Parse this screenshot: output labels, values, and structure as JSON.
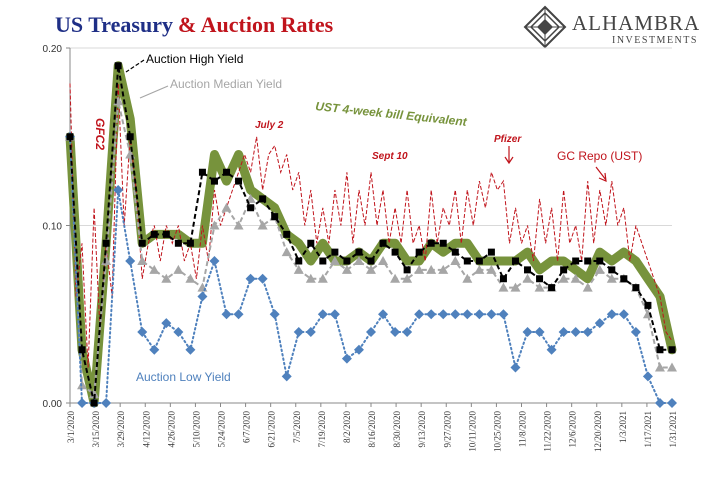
{
  "header": {
    "title_part1": "US Treasury",
    "title_part2": "& Auction Rates",
    "title_part1_color": "#1f2f86",
    "title_part2_color": "#c0141c"
  },
  "logo": {
    "name": "ALHAMBRA",
    "tagline": "INVESTMENTS"
  },
  "chart_data": {
    "type": "line",
    "ylim": [
      0,
      0.2
    ],
    "y_ticks": [
      "0.00",
      "0.10",
      "0.20"
    ],
    "x_tick_labels": [
      "3/1/2020",
      "3/15/2020",
      "3/29/2020",
      "4/12/2020",
      "4/26/2020",
      "5/10/2020",
      "5/24/2020",
      "6/7/2020",
      "6/21/2020",
      "7/5/2020",
      "7/19/2020",
      "8/2/2020",
      "8/16/2020",
      "8/30/2020",
      "9/13/2020",
      "9/27/2020",
      "10/11/2020",
      "10/25/2020",
      "11/8/2020",
      "11/22/2020",
      "12/6/2020",
      "12/20/2020",
      "1/3/2021",
      "1/17/2021",
      "1/31/2021"
    ],
    "series": [
      {
        "name": "UST 4-week bill Equivalent",
        "color": "#77933c",
        "style": "thick",
        "x": [
          0,
          1,
          2,
          3,
          4,
          5,
          6,
          7,
          8,
          9,
          10,
          11,
          12,
          13,
          14,
          15,
          16,
          17,
          18,
          19,
          20,
          21,
          22,
          23,
          24,
          25,
          26,
          27,
          28,
          29,
          30,
          31,
          32,
          33,
          34,
          35,
          36,
          37,
          38,
          39,
          40,
          41,
          42,
          43,
          44,
          45,
          46,
          47,
          48,
          49,
          50
        ],
        "values": [
          0.15,
          0.03,
          0.0,
          0.09,
          0.19,
          0.16,
          0.09,
          0.095,
          0.095,
          0.095,
          0.09,
          0.09,
          0.14,
          0.125,
          0.14,
          0.12,
          0.115,
          0.11,
          0.095,
          0.09,
          0.08,
          0.09,
          0.08,
          0.08,
          0.085,
          0.08,
          0.09,
          0.09,
          0.08,
          0.08,
          0.09,
          0.085,
          0.09,
          0.09,
          0.08,
          0.08,
          0.08,
          0.08,
          0.085,
          0.075,
          0.08,
          0.08,
          0.075,
          0.07,
          0.085,
          0.08,
          0.085,
          0.08,
          0.07,
          0.06,
          0.03
        ]
      },
      {
        "name": "Auction High Yield",
        "color": "#000000",
        "style": "dash-square",
        "x": [
          0,
          1,
          2,
          3,
          4,
          5,
          6,
          7,
          8,
          9,
          10,
          11,
          12,
          13,
          14,
          15,
          16,
          17,
          18,
          19,
          20,
          21,
          22,
          23,
          24,
          25,
          26,
          27,
          28,
          29,
          30,
          31,
          32,
          33,
          34,
          35,
          36,
          37,
          38,
          39,
          40,
          41,
          42,
          43,
          44,
          45,
          46,
          47,
          48,
          49,
          50
        ],
        "values": [
          0.15,
          0.03,
          0.0,
          0.09,
          0.19,
          0.15,
          0.09,
          0.095,
          0.095,
          0.09,
          0.09,
          0.13,
          0.125,
          0.13,
          0.125,
          0.11,
          0.115,
          0.105,
          0.095,
          0.08,
          0.09,
          0.08,
          0.085,
          0.08,
          0.085,
          0.08,
          0.09,
          0.085,
          0.075,
          0.085,
          0.09,
          0.09,
          0.085,
          0.08,
          0.08,
          0.085,
          0.07,
          0.08,
          0.075,
          0.07,
          0.065,
          0.075,
          0.08,
          0.08,
          0.08,
          0.075,
          0.07,
          0.065,
          0.055,
          0.03,
          0.03
        ]
      },
      {
        "name": "Auction Median Yield",
        "color": "#a6a6a6",
        "style": "dash-triangle",
        "x": [
          0,
          1,
          2,
          3,
          4,
          5,
          6,
          7,
          8,
          9,
          10,
          11,
          12,
          13,
          14,
          15,
          16,
          17,
          18,
          19,
          20,
          21,
          22,
          23,
          24,
          25,
          26,
          27,
          28,
          29,
          30,
          31,
          32,
          33,
          34,
          35,
          36,
          37,
          38,
          39,
          40,
          41,
          42,
          43,
          44,
          45,
          46,
          47,
          48,
          49,
          50
        ],
        "values": [
          0.15,
          0.01,
          0.005,
          0.08,
          0.17,
          0.14,
          0.08,
          0.075,
          0.07,
          0.075,
          0.07,
          0.065,
          0.1,
          0.11,
          0.1,
          0.115,
          0.1,
          0.105,
          0.085,
          0.075,
          0.07,
          0.07,
          0.08,
          0.075,
          0.08,
          0.075,
          0.08,
          0.07,
          0.07,
          0.075,
          0.075,
          0.075,
          0.08,
          0.07,
          0.075,
          0.075,
          0.065,
          0.065,
          0.07,
          0.065,
          0.065,
          0.07,
          0.07,
          0.065,
          0.075,
          0.07,
          0.07,
          0.065,
          0.05,
          0.02,
          0.02
        ]
      },
      {
        "name": "Auction Low Yield",
        "color": "#4f81bd",
        "style": "dot-diamond",
        "x": [
          0,
          1,
          2,
          3,
          4,
          5,
          6,
          7,
          8,
          9,
          10,
          11,
          12,
          13,
          14,
          15,
          16,
          17,
          18,
          19,
          20,
          21,
          22,
          23,
          24,
          25,
          26,
          27,
          28,
          29,
          30,
          31,
          32,
          33,
          34,
          35,
          36,
          37,
          38,
          39,
          40,
          41,
          42,
          43,
          44,
          45,
          46,
          47,
          48,
          49,
          50
        ],
        "values": [
          0.15,
          0.0,
          0.0,
          0.0,
          0.12,
          0.08,
          0.04,
          0.03,
          0.045,
          0.04,
          0.03,
          0.06,
          0.08,
          0.05,
          0.05,
          0.07,
          0.07,
          0.05,
          0.015,
          0.04,
          0.04,
          0.05,
          0.05,
          0.025,
          0.03,
          0.04,
          0.05,
          0.04,
          0.04,
          0.05,
          0.05,
          0.05,
          0.05,
          0.05,
          0.05,
          0.05,
          0.05,
          0.02,
          0.04,
          0.04,
          0.03,
          0.04,
          0.04,
          0.04,
          0.045,
          0.05,
          0.05,
          0.04,
          0.015,
          0.0,
          0.0
        ]
      },
      {
        "name": "GC Repo (UST)",
        "color": "#c0141c",
        "style": "dash-thin",
        "x": [
          0,
          0.5,
          1,
          1.5,
          2,
          2.5,
          3,
          3.5,
          4,
          4.5,
          5,
          5.5,
          6,
          6.5,
          7,
          7.5,
          8,
          8.5,
          9,
          9.5,
          10,
          10.5,
          11,
          11.5,
          12,
          12.5,
          13,
          13.5,
          14,
          14.5,
          15,
          15.5,
          16,
          16.5,
          17,
          17.5,
          18,
          18.5,
          19,
          19.5,
          20,
          20.5,
          21,
          21.5,
          22,
          22.5,
          23,
          23.5,
          24,
          24.5,
          25,
          25.5,
          26,
          26.5,
          27,
          27.5,
          28,
          28.5,
          29,
          29.5,
          30,
          30.5,
          31,
          31.5,
          32,
          32.5,
          33,
          33.5,
          34,
          34.5,
          35,
          35.5,
          36,
          36.5,
          37,
          37.5,
          38,
          38.5,
          39,
          39.5,
          40,
          40.5,
          41,
          41.5,
          42,
          42.5,
          43,
          43.5,
          44,
          44.5,
          45,
          45.5,
          46,
          46.5,
          47,
          47.5,
          48,
          48.5,
          49,
          49.5,
          50
        ],
        "values": [
          0.18,
          0.06,
          0.09,
          0.02,
          0.11,
          0.04,
          0.09,
          0.06,
          0.18,
          0.1,
          0.15,
          0.12,
          0.07,
          0.09,
          0.1,
          0.08,
          0.1,
          0.09,
          0.1,
          0.08,
          0.09,
          0.07,
          0.1,
          0.08,
          0.12,
          0.1,
          0.11,
          0.12,
          0.13,
          0.14,
          0.13,
          0.15,
          0.12,
          0.14,
          0.145,
          0.13,
          0.14,
          0.12,
          0.13,
          0.1,
          0.12,
          0.09,
          0.11,
          0.09,
          0.12,
          0.1,
          0.13,
          0.09,
          0.12,
          0.1,
          0.13,
          0.1,
          0.12,
          0.09,
          0.11,
          0.09,
          0.12,
          0.09,
          0.1,
          0.08,
          0.12,
          0.09,
          0.11,
          0.1,
          0.12,
          0.09,
          0.12,
          0.1,
          0.125,
          0.11,
          0.13,
          0.12,
          0.125,
          0.09,
          0.11,
          0.09,
          0.1,
          0.08,
          0.115,
          0.09,
          0.11,
          0.08,
          0.12,
          0.09,
          0.1,
          0.08,
          0.125,
          0.09,
          0.12,
          0.1,
          0.125,
          0.1,
          0.11,
          0.08,
          0.1,
          0.09,
          0.08,
          0.07,
          0.06,
          0.04,
          0.035
        ]
      }
    ],
    "annotations": [
      {
        "text": "Auction High Yield",
        "color": "#000000"
      },
      {
        "text": "Auction Median Yield",
        "color": "#a6a6a6"
      },
      {
        "text": "UST 4-week bill Equivalent",
        "color": "#77933c"
      },
      {
        "text": "July 2",
        "color": "#c0141c"
      },
      {
        "text": "Sept 10",
        "color": "#c0141c"
      },
      {
        "text": "Pfizer",
        "color": "#c0141c"
      },
      {
        "text": "GC Repo (UST)",
        "color": "#c0141c"
      },
      {
        "text": "GFC2",
        "color": "#c0141c"
      },
      {
        "text": "Auction Low Yield",
        "color": "#4f81bd"
      }
    ]
  }
}
